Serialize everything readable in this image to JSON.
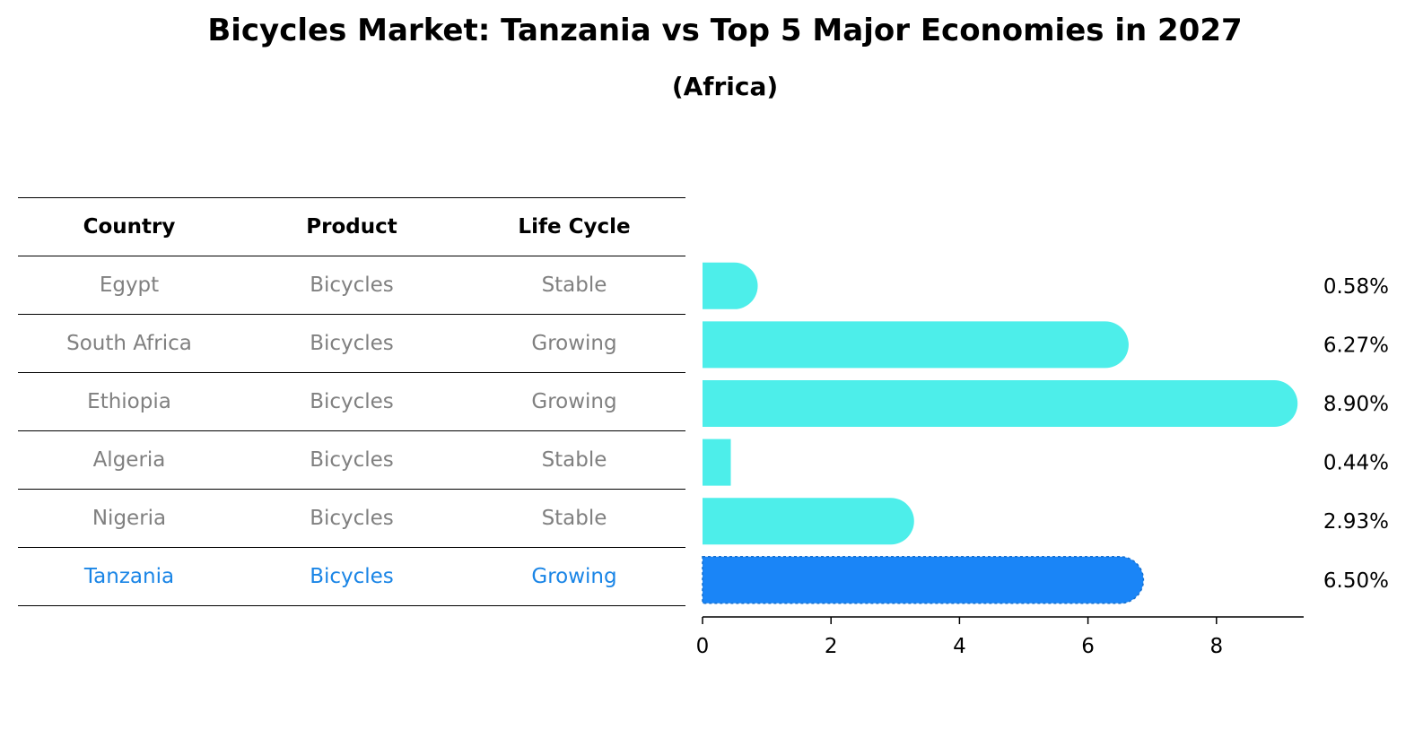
{
  "header": {
    "title": "Bicycles Market: Tanzania vs Top 5 Major Economies in 2027",
    "subtitle": "(Africa)"
  },
  "table": {
    "columns": [
      "Country",
      "Product",
      "Life Cycle"
    ],
    "rows": [
      {
        "country": "Egypt",
        "product": "Bicycles",
        "life_cycle": "Stable"
      },
      {
        "country": "South Africa",
        "product": "Bicycles",
        "life_cycle": "Growing"
      },
      {
        "country": "Ethiopia",
        "product": "Bicycles",
        "life_cycle": "Growing"
      },
      {
        "country": "Algeria",
        "product": "Bicycles",
        "life_cycle": "Stable"
      },
      {
        "country": "Nigeria",
        "product": "Bicycles",
        "life_cycle": "Stable"
      },
      {
        "country": "Tanzania",
        "product": "Bicycles",
        "life_cycle": "Growing"
      }
    ],
    "highlight_row": 5
  },
  "colors": {
    "bar": "#4deeea",
    "highlight": "#1a85f7",
    "muted_text": "#808080",
    "highlight_text": "#1a85e6"
  },
  "chart_data": {
    "type": "bar",
    "orientation": "horizontal",
    "categories": [
      "Egypt",
      "South Africa",
      "Ethiopia",
      "Algeria",
      "Nigeria",
      "Tanzania"
    ],
    "values": [
      0.58,
      6.27,
      8.9,
      0.44,
      2.93,
      6.5
    ],
    "value_labels": [
      "0.58%",
      "6.27%",
      "8.90%",
      "0.44%",
      "2.93%",
      "6.50%"
    ],
    "xticks": [
      0,
      2,
      4,
      6,
      8
    ],
    "xlim": [
      0,
      9.35
    ],
    "grid": false
  }
}
